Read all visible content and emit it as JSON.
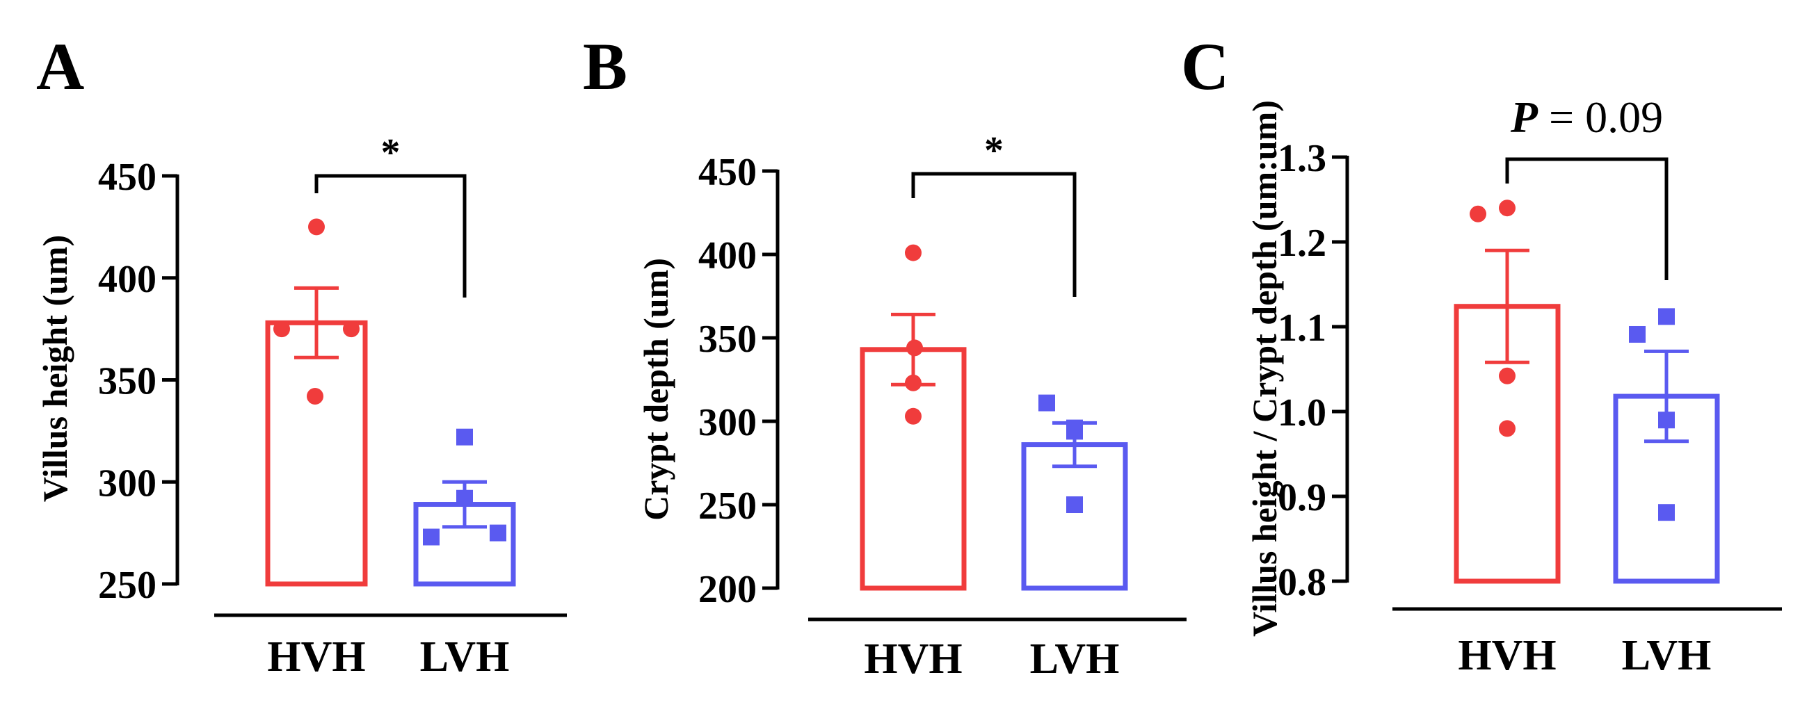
{
  "colors": {
    "HVH": "#f03c3c",
    "LVH": "#5a5af0",
    "axis": "#000000"
  },
  "chart_data": [
    {
      "panel": "A",
      "type": "bar",
      "ylabel": "Villus height (um)",
      "ylim": [
        250,
        450
      ],
      "yticks": [
        250,
        300,
        350,
        400,
        450
      ],
      "ytick_labels": [
        "250",
        "300",
        "350",
        "400",
        "450"
      ],
      "categories": [
        "HVH",
        "LVH"
      ],
      "means": [
        378,
        289
      ],
      "sem": [
        17,
        11
      ],
      "points": [
        [
          425,
          375,
          375,
          342
        ],
        [
          322,
          292,
          275,
          273
        ]
      ],
      "significance": "*"
    },
    {
      "panel": "B",
      "type": "bar",
      "ylabel": "Crypt depth (um)",
      "ylim": [
        200,
        450
      ],
      "yticks": [
        200,
        250,
        300,
        350,
        400,
        450
      ],
      "ytick_labels": [
        "200",
        "250",
        "300",
        "350",
        "400",
        "450"
      ],
      "categories": [
        "HVH",
        "LVH"
      ],
      "means": [
        343,
        286
      ],
      "sem": [
        21,
        13
      ],
      "points": [
        [
          401,
          344,
          323,
          303
        ],
        [
          311,
          294,
          296,
          250
        ]
      ],
      "significance": "*"
    },
    {
      "panel": "C",
      "type": "bar",
      "ylabel": "Villus height / Crypt depth (um:um)",
      "ylim": [
        0.8,
        1.3
      ],
      "yticks": [
        0.8,
        0.9,
        1.0,
        1.1,
        1.2,
        1.3
      ],
      "ytick_labels": [
        "0.8",
        "0.9",
        "1.0",
        "1.1",
        "1.2",
        "1.3"
      ],
      "categories": [
        "HVH",
        "LVH"
      ],
      "means": [
        1.124,
        1.018
      ],
      "sem": [
        0.066,
        0.053
      ],
      "points": [
        [
          1.233,
          1.24,
          1.042,
          0.98
        ],
        [
          1.112,
          1.091,
          0.99,
          0.881
        ]
      ],
      "significance_p": "P",
      "significance": "= 0.09"
    }
  ]
}
